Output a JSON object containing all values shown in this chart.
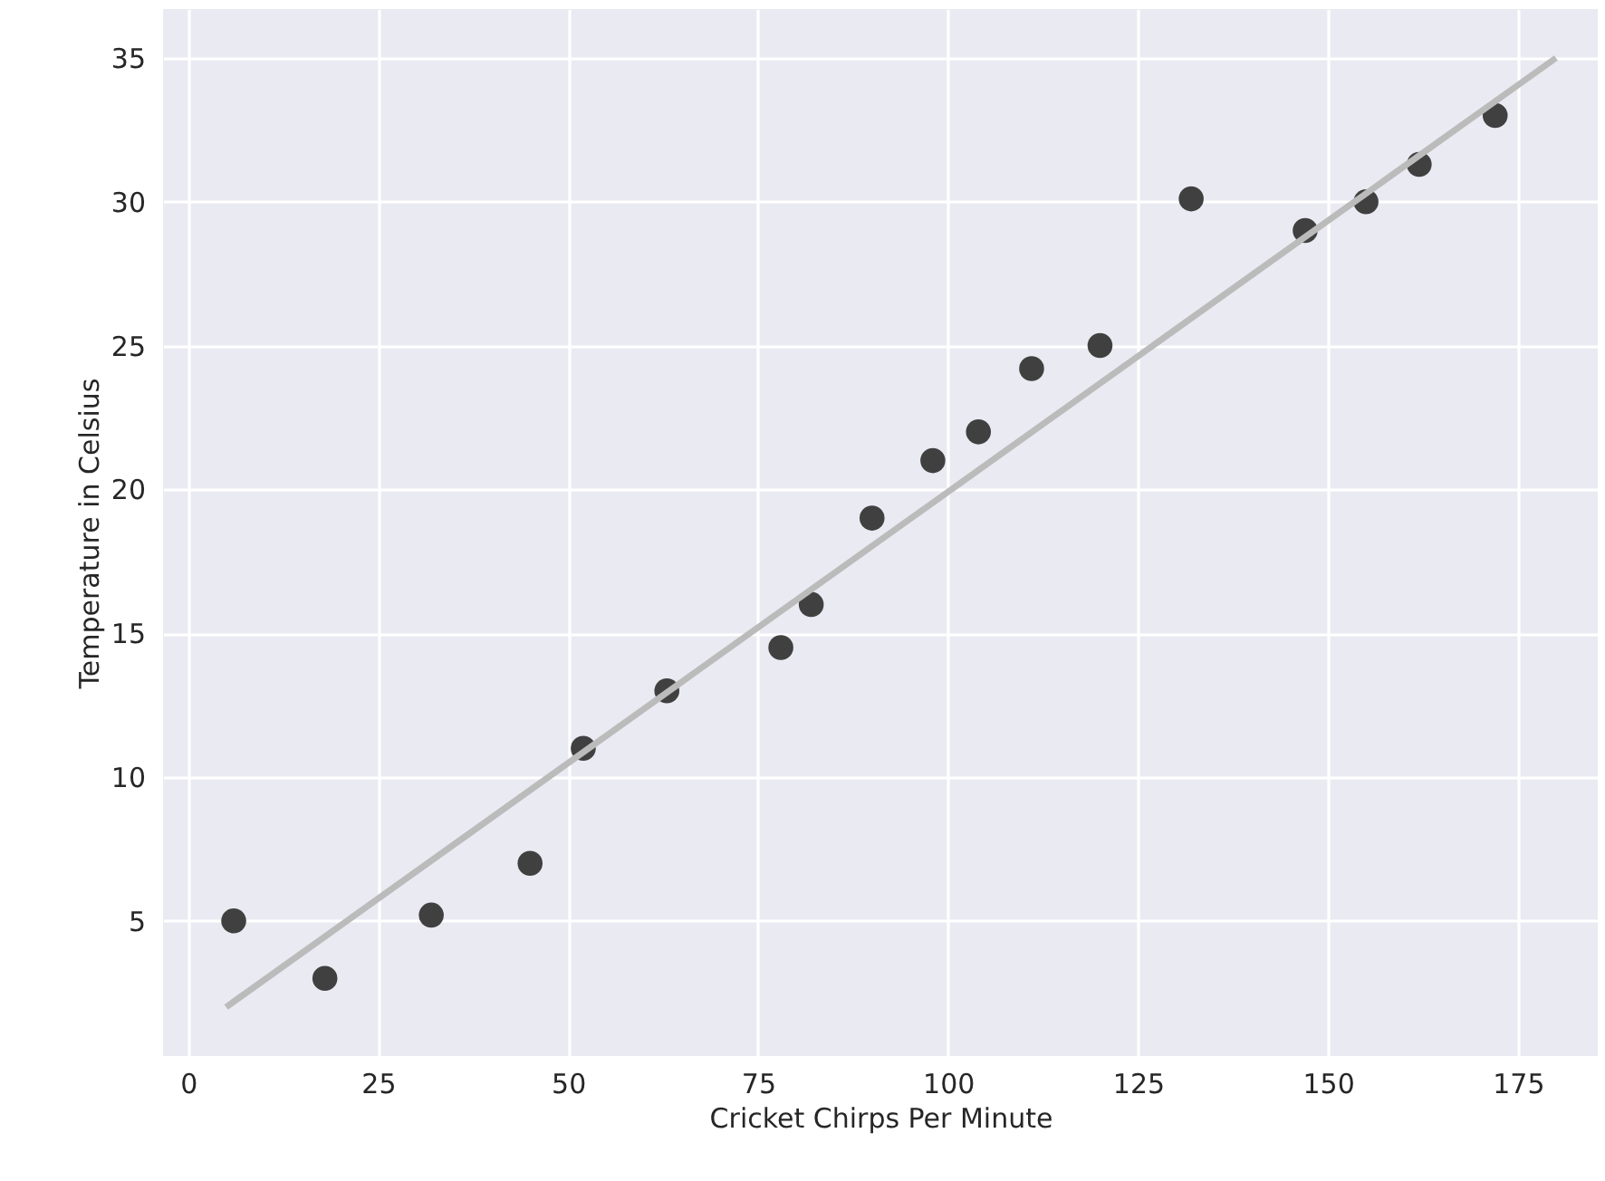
{
  "chart_data": {
    "type": "scatter",
    "xlabel": "Cricket Chirps Per Minute",
    "ylabel": "Temperature in Celsius",
    "xlim": [
      -3.3,
      185.5
    ],
    "ylim": [
      0.3,
      36.7
    ],
    "xticks": [
      0,
      25,
      50,
      75,
      100,
      125,
      150,
      175
    ],
    "yticks": [
      5,
      10,
      15,
      20,
      25,
      30,
      35
    ],
    "grid": true,
    "marker": "circle",
    "series": [
      {
        "color": "#404040",
        "x": [
          6,
          18,
          32,
          45,
          52,
          63,
          78,
          82,
          90,
          98,
          104,
          111,
          120,
          132,
          147,
          155,
          162,
          172
        ],
        "values": [
          5,
          3,
          5.2,
          7,
          11,
          13,
          14.5,
          16,
          19,
          21,
          22,
          24.2,
          25,
          30.1,
          29,
          30,
          31.3,
          33
        ]
      },
      {
        "type": "line",
        "color": "#bbbbbb",
        "line_style": "solid",
        "marker": "none",
        "x": [
          5,
          180
        ],
        "values": [
          2,
          35
        ]
      }
    ]
  }
}
